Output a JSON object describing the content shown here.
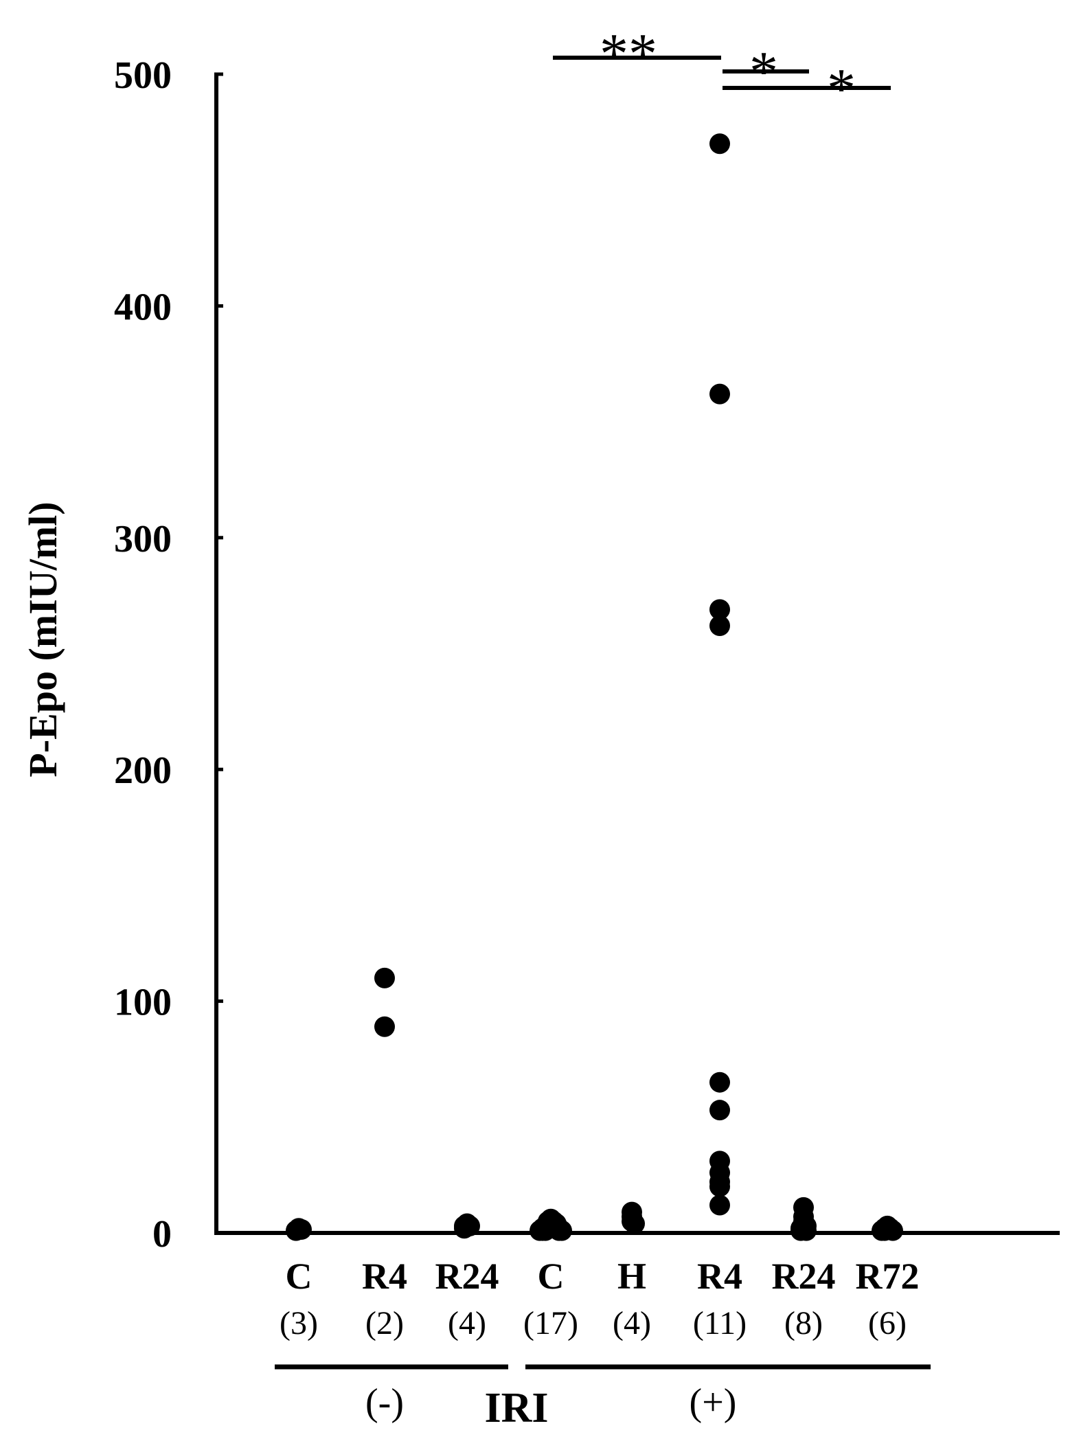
{
  "chart_data": {
    "type": "scatter",
    "title": "",
    "ylabel": "P-Epo (mIU/ml)",
    "ylim": [
      0,
      500
    ],
    "yticks": [
      "0",
      "100",
      "200",
      "300",
      "400",
      "500"
    ],
    "grid": false,
    "categories": [
      {
        "label": "C",
        "n": "(3)",
        "values": [
          2,
          1.5,
          1
        ]
      },
      {
        "label": "R4",
        "n": "(2)",
        "values": [
          110,
          89
        ]
      },
      {
        "label": "R24",
        "n": "(4)",
        "values": [
          4,
          3,
          3,
          2
        ]
      },
      {
        "label": "C",
        "n": "(17)",
        "values": [
          6,
          5,
          5,
          4,
          4,
          3,
          3,
          3,
          2,
          2,
          2,
          2,
          1,
          1,
          1,
          1,
          1
        ]
      },
      {
        "label": "H",
        "n": "(4)",
        "values": [
          9,
          7,
          5,
          4
        ]
      },
      {
        "label": "R4",
        "n": "(11)",
        "values": [
          470,
          362,
          269,
          262,
          65,
          53,
          31,
          26,
          22,
          20,
          12
        ]
      },
      {
        "label": "R24",
        "n": "(8)",
        "values": [
          11,
          7,
          5,
          3,
          3,
          2,
          1,
          1
        ]
      },
      {
        "label": "R72",
        "n": "(6)",
        "values": [
          3,
          2,
          2,
          1,
          1,
          1
        ]
      }
    ],
    "groups": [
      {
        "label": "(-)",
        "from": 0,
        "to": 2
      },
      {
        "label": "(+)",
        "from": 3,
        "to": 7
      }
    ],
    "group_title": "IRI",
    "significance": [
      {
        "label": "**",
        "from": 3,
        "to": 5
      },
      {
        "label": "*",
        "from": 5,
        "to": 6
      },
      {
        "label": "*",
        "from": 5,
        "to": 7
      }
    ]
  }
}
